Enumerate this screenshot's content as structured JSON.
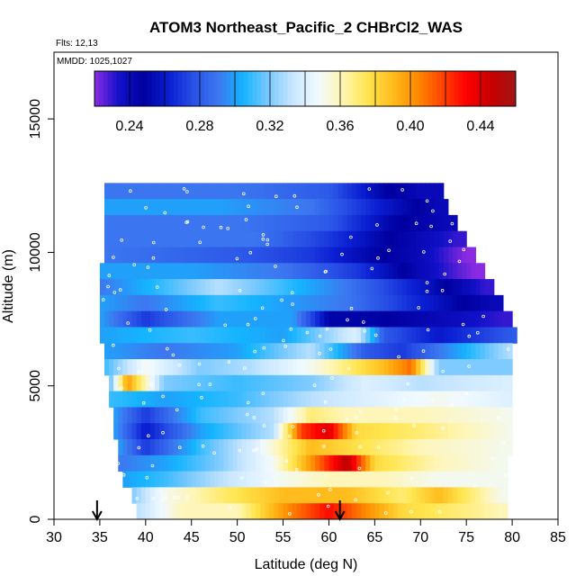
{
  "chart_data": {
    "type": "heatmap",
    "title": "ATOM3 Northeast_Pacific_2 CHBrCl2_WAS",
    "flights_label": "Flts: 12,13",
    "date_label": "MMDD: 1025,1027",
    "xlabel": "Latitude (deg N)",
    "ylabel": "Altitude (m)",
    "xlim": [
      30,
      85
    ],
    "ylim": [
      0,
      17500
    ],
    "x_ticks": [
      "30",
      "35",
      "40",
      "45",
      "50",
      "55",
      "60",
      "65",
      "70",
      "75",
      "80",
      "85"
    ],
    "y_ticks": [
      "0",
      "5000",
      "10000",
      "15000"
    ],
    "colorbar": {
      "range": [
        0.22,
        0.46
      ],
      "tick_labels": [
        "0.24",
        "0.28",
        "0.32",
        "0.36",
        "0.40",
        "0.44"
      ],
      "tick_values": [
        0.24,
        0.28,
        0.32,
        0.36,
        0.4,
        0.44
      ],
      "colors": [
        "#8a2be2",
        "#1010c8",
        "#0000a0",
        "#0a1ed2",
        "#2850e6",
        "#3c78f0",
        "#14b4ff",
        "#78c8ff",
        "#c8e6ff",
        "#f0faff",
        "#fff5b4",
        "#ffe650",
        "#ffbe1e",
        "#ff8c00",
        "#ff4600",
        "#ff0000",
        "#c80000",
        "#a01414"
      ]
    },
    "arrow_latitudes": [
      34.7,
      61.2
    ],
    "bands": [
      {
        "alt": 12300,
        "lat_min": 35.5,
        "lat_max": 72.5,
        "values": [
          [
            35.5,
            0.29
          ],
          [
            50,
            0.29
          ],
          [
            60,
            0.28
          ],
          [
            66,
            0.25
          ],
          [
            70,
            0.24
          ]
        ]
      },
      {
        "alt": 11700,
        "lat_min": 35.5,
        "lat_max": 73.0,
        "values": [
          [
            35.5,
            0.3
          ],
          [
            48,
            0.3
          ],
          [
            58,
            0.29
          ],
          [
            66,
            0.26
          ],
          [
            72,
            0.24
          ]
        ]
      },
      {
        "alt": 11100,
        "lat_min": 35.5,
        "lat_max": 74.0,
        "values": [
          [
            35.5,
            0.29
          ],
          [
            50,
            0.29
          ],
          [
            60,
            0.28
          ],
          [
            67,
            0.25
          ],
          [
            73,
            0.24
          ]
        ]
      },
      {
        "alt": 10500,
        "lat_min": 35.5,
        "lat_max": 75.0,
        "values": [
          [
            35.5,
            0.29
          ],
          [
            52,
            0.29
          ],
          [
            60,
            0.27
          ],
          [
            66,
            0.25
          ],
          [
            70,
            0.24
          ],
          [
            74,
            0.23
          ]
        ]
      },
      {
        "alt": 9900,
        "lat_min": 35.5,
        "lat_max": 76.0,
        "values": [
          [
            35.5,
            0.29
          ],
          [
            50,
            0.28
          ],
          [
            58,
            0.27
          ],
          [
            65,
            0.25
          ],
          [
            70,
            0.24
          ],
          [
            75,
            0.22
          ]
        ]
      },
      {
        "alt": 9300,
        "lat_min": 35.0,
        "lat_max": 77.0,
        "values": [
          [
            35,
            0.3
          ],
          [
            45,
            0.3
          ],
          [
            55,
            0.29
          ],
          [
            63,
            0.27
          ],
          [
            70,
            0.24
          ],
          [
            76,
            0.22
          ]
        ]
      },
      {
        "alt": 8700,
        "lat_min": 35.0,
        "lat_max": 78.0,
        "values": [
          [
            35,
            0.29
          ],
          [
            42,
            0.31
          ],
          [
            48,
            0.33
          ],
          [
            55,
            0.31
          ],
          [
            62,
            0.29
          ],
          [
            70,
            0.26
          ],
          [
            77,
            0.23
          ]
        ]
      },
      {
        "alt": 8100,
        "lat_min": 35.0,
        "lat_max": 79.0,
        "values": [
          [
            35,
            0.3
          ],
          [
            40,
            0.29
          ],
          [
            48,
            0.31
          ],
          [
            55,
            0.3
          ],
          [
            62,
            0.29
          ],
          [
            68,
            0.27
          ],
          [
            74,
            0.25
          ],
          [
            78,
            0.24
          ]
        ]
      },
      {
        "alt": 7500,
        "lat_min": 35.0,
        "lat_max": 80.0,
        "values": [
          [
            35,
            0.3
          ],
          [
            40,
            0.27
          ],
          [
            48,
            0.3
          ],
          [
            56,
            0.3
          ],
          [
            60,
            0.25
          ],
          [
            65,
            0.25
          ],
          [
            72,
            0.24
          ],
          [
            79,
            0.23
          ]
        ]
      },
      {
        "alt": 6900,
        "lat_min": 35.0,
        "lat_max": 80.5,
        "values": [
          [
            35,
            0.3
          ],
          [
            45,
            0.31
          ],
          [
            55,
            0.3
          ],
          [
            63,
            0.34
          ],
          [
            66,
            0.28
          ],
          [
            72,
            0.26
          ],
          [
            80,
            0.28
          ]
        ]
      },
      {
        "alt": 6300,
        "lat_min": 35.5,
        "lat_max": 80.0,
        "values": [
          [
            35.5,
            0.3
          ],
          [
            42,
            0.29
          ],
          [
            50,
            0.3
          ],
          [
            58,
            0.33
          ],
          [
            64,
            0.28
          ],
          [
            68,
            0.27
          ],
          [
            74,
            0.3
          ],
          [
            80,
            0.33
          ]
        ]
      },
      {
        "alt": 5700,
        "lat_min": 35.5,
        "lat_max": 80.0,
        "values": [
          [
            35.5,
            0.31
          ],
          [
            40,
            0.35
          ],
          [
            46,
            0.32
          ],
          [
            52,
            0.33
          ],
          [
            58,
            0.35
          ],
          [
            62,
            0.37
          ],
          [
            66,
            0.39
          ],
          [
            69,
            0.41
          ],
          [
            72,
            0.32
          ],
          [
            80,
            0.32
          ]
        ]
      },
      {
        "alt": 5100,
        "lat_min": 36.0,
        "lat_max": 80.0,
        "values": [
          [
            36,
            0.31
          ],
          [
            38,
            0.4
          ],
          [
            42,
            0.32
          ],
          [
            50,
            0.31
          ],
          [
            58,
            0.32
          ],
          [
            64,
            0.34
          ],
          [
            70,
            0.33
          ],
          [
            80,
            0.34
          ]
        ]
      },
      {
        "alt": 4500,
        "lat_min": 36.0,
        "lat_max": 80.0,
        "values": [
          [
            36,
            0.31
          ],
          [
            42,
            0.3
          ],
          [
            50,
            0.31
          ],
          [
            58,
            0.33
          ],
          [
            64,
            0.34
          ],
          [
            72,
            0.35
          ],
          [
            80,
            0.34
          ]
        ]
      },
      {
        "alt": 3900,
        "lat_min": 36.5,
        "lat_max": 80.0,
        "values": [
          [
            36.5,
            0.3
          ],
          [
            40,
            0.27
          ],
          [
            46,
            0.31
          ],
          [
            54,
            0.33
          ],
          [
            58,
            0.37
          ],
          [
            62,
            0.36
          ],
          [
            70,
            0.36
          ],
          [
            80,
            0.35
          ]
        ]
      },
      {
        "alt": 3300,
        "lat_min": 36.5,
        "lat_max": 80.0,
        "values": [
          [
            36.5,
            0.3
          ],
          [
            40,
            0.26
          ],
          [
            46,
            0.3
          ],
          [
            54,
            0.33
          ],
          [
            57,
            0.42
          ],
          [
            60,
            0.44
          ],
          [
            63,
            0.38
          ],
          [
            70,
            0.37
          ],
          [
            80,
            0.35
          ]
        ]
      },
      {
        "alt": 2700,
        "lat_min": 37.0,
        "lat_max": 80.0,
        "values": [
          [
            37,
            0.3
          ],
          [
            40,
            0.27
          ],
          [
            46,
            0.31
          ],
          [
            52,
            0.34
          ],
          [
            58,
            0.39
          ],
          [
            62,
            0.38
          ],
          [
            70,
            0.36
          ],
          [
            80,
            0.35
          ]
        ]
      },
      {
        "alt": 2100,
        "lat_min": 37.0,
        "lat_max": 79.5,
        "values": [
          [
            37,
            0.29
          ],
          [
            42,
            0.3
          ],
          [
            48,
            0.32
          ],
          [
            54,
            0.35
          ],
          [
            58,
            0.4
          ],
          [
            62,
            0.45
          ],
          [
            65,
            0.38
          ],
          [
            72,
            0.36
          ],
          [
            79,
            0.35
          ]
        ]
      },
      {
        "alt": 1500,
        "lat_min": 37.5,
        "lat_max": 79.5,
        "values": [
          [
            37.5,
            0.3
          ],
          [
            42,
            0.31
          ],
          [
            48,
            0.33
          ],
          [
            55,
            0.35
          ],
          [
            60,
            0.36
          ],
          [
            66,
            0.36
          ],
          [
            72,
            0.35
          ],
          [
            79,
            0.35
          ]
        ]
      },
      {
        "alt": 900,
        "lat_min": 38.5,
        "lat_max": 79.5,
        "values": [
          [
            38.5,
            0.32
          ],
          [
            42,
            0.35
          ],
          [
            48,
            0.37
          ],
          [
            55,
            0.39
          ],
          [
            62,
            0.39
          ],
          [
            68,
            0.37
          ],
          [
            72,
            0.39
          ],
          [
            79,
            0.35
          ]
        ]
      },
      {
        "alt": 300,
        "lat_min": 39.0,
        "lat_max": 79.5,
        "values": [
          [
            39,
            0.33
          ],
          [
            44,
            0.36
          ],
          [
            50,
            0.36
          ],
          [
            55,
            0.4
          ],
          [
            60,
            0.43
          ],
          [
            63,
            0.41
          ],
          [
            68,
            0.38
          ],
          [
            74,
            0.37
          ],
          [
            79,
            0.36
          ]
        ]
      }
    ]
  }
}
